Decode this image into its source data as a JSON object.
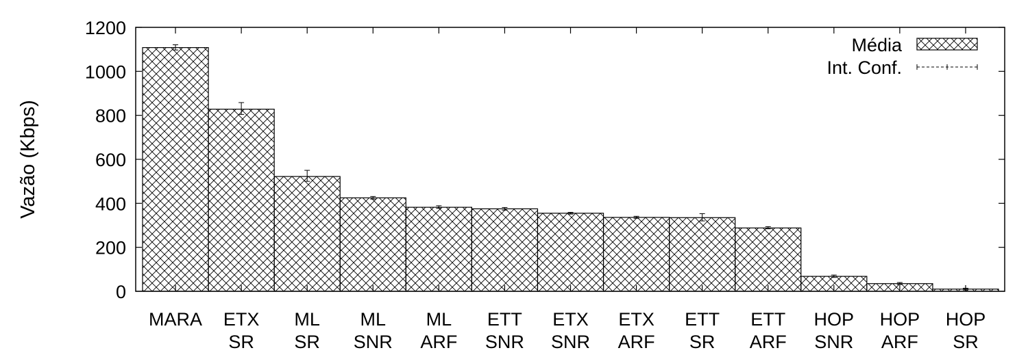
{
  "chart_data": {
    "type": "bar",
    "title": "",
    "xlabel": "",
    "ylabel": "Vazão (Kbps)",
    "ylim": [
      0,
      1200
    ],
    "yticks": [
      0,
      200,
      400,
      600,
      800,
      1000,
      1200
    ],
    "ytick_labels": [
      "0",
      "200",
      "400",
      "600",
      "800",
      "1000",
      "1200"
    ],
    "categories": [
      {
        "line1": "MARA",
        "line2": ""
      },
      {
        "line1": "ETX",
        "line2": "SR"
      },
      {
        "line1": "ML",
        "line2": "SR"
      },
      {
        "line1": "ML",
        "line2": "SNR"
      },
      {
        "line1": "ML",
        "line2": "ARF"
      },
      {
        "line1": "ETT",
        "line2": "SNR"
      },
      {
        "line1": "ETX",
        "line2": "SNR"
      },
      {
        "line1": "ETX",
        "line2": "ARF"
      },
      {
        "line1": "ETT",
        "line2": "SR"
      },
      {
        "line1": "ETT",
        "line2": "ARF"
      },
      {
        "line1": "HOP",
        "line2": "SNR"
      },
      {
        "line1": "HOP",
        "line2": "ARF"
      },
      {
        "line1": "HOP",
        "line2": "SR"
      }
    ],
    "series": [
      {
        "name": "Média",
        "values": [
          1108,
          828,
          522,
          425,
          382,
          375,
          355,
          336,
          335,
          288,
          68,
          35,
          10
        ]
      }
    ],
    "error": {
      "name": "Int. Conf.",
      "low": [
        1097,
        804,
        500,
        419,
        377,
        369,
        351,
        332,
        320,
        284,
        63,
        31,
        6
      ],
      "high": [
        1121,
        858,
        550,
        431,
        389,
        381,
        359,
        341,
        353,
        294,
        74,
        40,
        14
      ]
    },
    "grid": false,
    "legend": "top-right",
    "bar_pattern": "crosshatch",
    "colors": {
      "bar_fill": "#ffffff",
      "bar_stroke": "#000000",
      "hatch": "#000000"
    }
  }
}
